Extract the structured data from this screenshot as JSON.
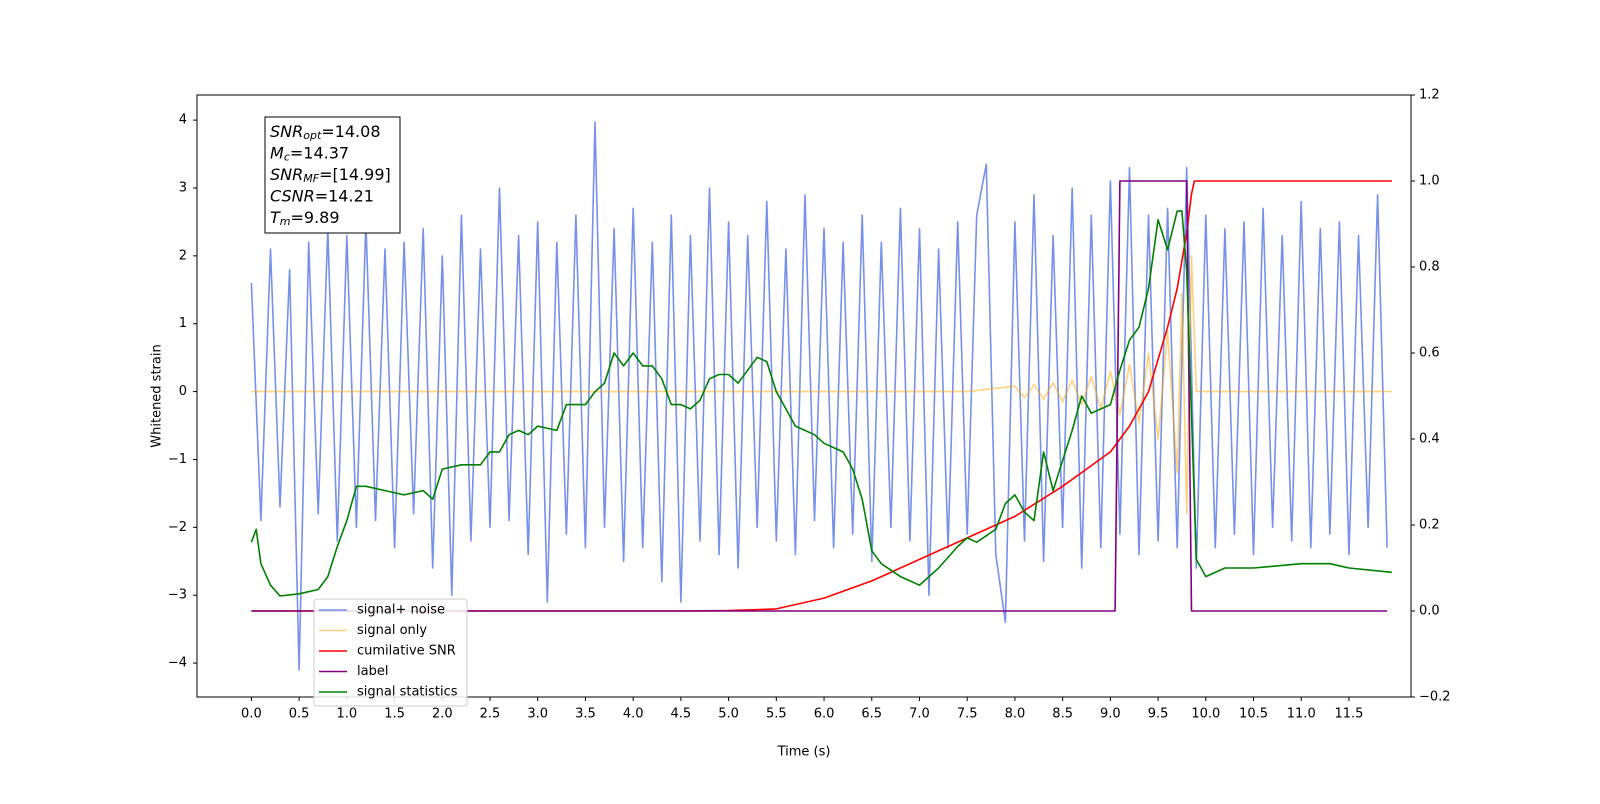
{
  "chart_data": {
    "type": "line",
    "x_label": "Time (s)",
    "y_label": "Whitened strain",
    "xlim": [
      -0.57,
      12.15
    ],
    "ylim": [
      -4.5,
      4.37
    ],
    "y2lim": [
      -0.2,
      1.2
    ],
    "xticks": [
      {
        "value": 0,
        "label": "0.0"
      },
      0.5,
      {
        "value": 1,
        "label": "1.0"
      },
      1.5,
      {
        "value": 2,
        "label": "2.0"
      },
      2.5,
      {
        "value": 3,
        "label": "3.0"
      },
      3.5,
      {
        "value": 4,
        "label": "4.0"
      },
      4.5,
      {
        "value": 5,
        "label": "5.0"
      },
      5.5,
      {
        "value": 6,
        "label": "6.0"
      },
      6.5,
      {
        "value": 7,
        "label": "7.0"
      },
      7.5,
      {
        "value": 8,
        "label": "8.0"
      },
      8.5,
      {
        "value": 9,
        "label": "9.0"
      },
      9.5,
      {
        "value": 10,
        "label": "10.0"
      },
      10.5,
      {
        "value": 11,
        "label": "11.0"
      },
      11.5
    ],
    "yticks": [
      {
        "value": -4,
        "label": "−4"
      },
      {
        "value": -3,
        "label": "−3"
      },
      {
        "value": -2,
        "label": "−2"
      },
      {
        "value": -1,
        "label": "−1"
      },
      0,
      1,
      2,
      3,
      4
    ],
    "y2ticks": [
      {
        "value": -0.2,
        "label": "−0.2"
      },
      {
        "value": 0,
        "label": "0.0"
      },
      0.2,
      0.4,
      0.6,
      0.8,
      {
        "value": 1,
        "label": "1.0"
      },
      1.2
    ],
    "annotation": [
      {
        "symbol": "SNR",
        "subscript": "opt",
        "text": "=14.08"
      },
      {
        "symbol": "M",
        "subscript": "c",
        "text": "=14.37"
      },
      {
        "symbol": "SNR",
        "subscript": "MF",
        "text": "=[14.99]"
      },
      {
        "symbol": "CSNR",
        "text": "=14.21"
      },
      {
        "symbol": "T",
        "subscript": "m",
        "text": "=9.89"
      }
    ],
    "series": [
      {
        "name": "signal+ noise",
        "color": "#7791e8",
        "x": [
          0,
          0.1,
          0.2,
          0.3,
          0.4,
          0.5,
          0.6,
          0.7,
          0.8,
          0.9,
          1,
          1.1,
          1.2,
          1.3,
          1.4,
          1.5,
          1.6,
          1.7,
          1.8,
          1.9,
          2,
          2.1,
          2.2,
          2.3,
          2.4,
          2.5,
          2.6,
          2.7,
          2.8,
          2.9,
          3,
          3.1,
          3.2,
          3.3,
          3.4,
          3.5,
          3.6,
          3.7,
          3.8,
          3.9,
          4,
          4.1,
          4.2,
          4.3,
          4.4,
          4.5,
          4.6,
          4.7,
          4.8,
          4.9,
          5,
          5.1,
          5.2,
          5.3,
          5.4,
          5.5,
          5.6,
          5.7,
          5.8,
          5.9,
          6,
          6.1,
          6.2,
          6.3,
          6.4,
          6.5,
          6.6,
          6.7,
          6.8,
          6.9,
          7,
          7.1,
          7.2,
          7.3,
          7.4,
          7.5,
          7.6,
          7.7,
          7.8,
          7.9,
          8,
          8.1,
          8.2,
          8.3,
          8.4,
          8.5,
          8.6,
          8.7,
          8.8,
          8.9,
          9,
          9.1,
          9.2,
          9.3,
          9.4,
          9.5,
          9.6,
          9.7,
          9.8,
          9.9,
          10,
          10.1,
          10.2,
          10.3,
          10.4,
          10.5,
          10.6,
          10.7,
          10.8,
          10.9,
          11,
          11.1,
          11.2,
          11.3,
          11.4,
          11.5,
          11.6,
          11.7,
          11.8,
          11.9
        ],
        "values": [
          1.6,
          -1.9,
          2.1,
          -1.7,
          1.8,
          -4.1,
          2.2,
          -1.8,
          2.4,
          -2.2,
          2.3,
          -2.0,
          2.5,
          -1.9,
          2.1,
          -2.3,
          2.2,
          -1.8,
          2.4,
          -2.6,
          2.0,
          -3.0,
          2.6,
          -2.2,
          2.1,
          -2.0,
          3.0,
          -1.9,
          2.3,
          -2.4,
          2.5,
          -3.1,
          2.2,
          -2.1,
          2.6,
          -2.3,
          3.97,
          -2.0,
          2.4,
          -2.5,
          2.7,
          -2.3,
          2.2,
          -2.8,
          2.6,
          -3.1,
          2.3,
          -2.2,
          3.0,
          -2.4,
          2.5,
          -2.6,
          2.3,
          -2.0,
          2.8,
          -2.2,
          2.1,
          -2.4,
          2.9,
          -1.9,
          2.4,
          -2.3,
          2.2,
          -2.1,
          2.6,
          -2.5,
          2.2,
          -2.0,
          2.7,
          -2.2,
          2.4,
          -3.0,
          2.1,
          -2.3,
          2.5,
          -2.1,
          2.6,
          3.35,
          -2.4,
          -3.4,
          2.5,
          -2.2,
          2.9,
          -2.5,
          2.3,
          -2.0,
          3.0,
          -2.6,
          2.6,
          -2.3,
          3.1,
          -2.1,
          3.3,
          -2.4,
          2.6,
          -2.2,
          2.7,
          -2.3,
          3.3,
          -2.6,
          2.6,
          -2.3,
          2.4,
          -2.1,
          2.5,
          -2.4,
          2.7,
          -2.0,
          2.3,
          -2.2,
          2.8,
          -2.3,
          2.4,
          -2.1,
          2.5,
          -2.4,
          2.3,
          -2.0,
          2.9,
          -2.3
        ]
      },
      {
        "name": "signal only",
        "color": "orange",
        "alpha": 0.5,
        "x": [
          0,
          7.5,
          8.0,
          8.1,
          8.2,
          8.3,
          8.4,
          8.5,
          8.6,
          8.7,
          8.8,
          8.9,
          9.0,
          9.1,
          9.2,
          9.3,
          9.4,
          9.5,
          9.6,
          9.7,
          9.75,
          9.8,
          9.85,
          9.9,
          11.95
        ],
        "values": [
          0,
          0,
          0.08,
          -0.09,
          0.1,
          -0.11,
          0.13,
          -0.15,
          0.17,
          -0.19,
          0.22,
          -0.25,
          0.3,
          -0.34,
          0.4,
          -0.46,
          0.56,
          -0.7,
          0.88,
          -1.2,
          1.45,
          -1.8,
          2.0,
          0,
          0
        ]
      },
      {
        "name": "cumilative SNR",
        "color": "#ff0000",
        "axis": "y2",
        "x": [
          0,
          4.5,
          5.0,
          5.5,
          6.0,
          6.5,
          7.0,
          7.5,
          8.0,
          8.5,
          9.0,
          9.2,
          9.4,
          9.6,
          9.7,
          9.8,
          9.85,
          9.88,
          11.95
        ],
        "values": [
          0,
          0,
          0.001,
          0.005,
          0.03,
          0.07,
          0.12,
          0.17,
          0.22,
          0.29,
          0.37,
          0.43,
          0.51,
          0.66,
          0.75,
          0.88,
          0.97,
          1.0,
          1.0
        ]
      },
      {
        "name": "label",
        "color": "#800080",
        "axis": "y2",
        "x": [
          0,
          9.05,
          9.1,
          9.8,
          9.85,
          11.9
        ],
        "values": [
          0,
          0,
          1,
          1,
          0,
          0
        ]
      },
      {
        "name": "signal statistics",
        "color": "#008000",
        "axis": "y2",
        "x": [
          0,
          0.05,
          0.1,
          0.2,
          0.3,
          0.5,
          0.7,
          0.8,
          0.9,
          1.0,
          1.1,
          1.2,
          1.4,
          1.6,
          1.8,
          1.9,
          2.0,
          2.2,
          2.4,
          2.5,
          2.6,
          2.7,
          2.8,
          2.9,
          3.0,
          3.2,
          3.3,
          3.5,
          3.6,
          3.7,
          3.8,
          3.9,
          4.0,
          4.1,
          4.2,
          4.3,
          4.4,
          4.5,
          4.6,
          4.7,
          4.8,
          4.9,
          5.0,
          5.1,
          5.2,
          5.3,
          5.4,
          5.5,
          5.6,
          5.7,
          5.9,
          6.0,
          6.2,
          6.3,
          6.4,
          6.5,
          6.6,
          6.8,
          7.0,
          7.2,
          7.4,
          7.5,
          7.6,
          7.8,
          7.9,
          8.0,
          8.1,
          8.2,
          8.3,
          8.4,
          8.5,
          8.6,
          8.7,
          8.8,
          9.0,
          9.1,
          9.2,
          9.3,
          9.4,
          9.5,
          9.6,
          9.7,
          9.75,
          9.8,
          9.9,
          10.0,
          10.2,
          10.5,
          11.0,
          11.3,
          11.5,
          11.95
        ],
        "values": [
          0.16,
          0.19,
          0.11,
          0.06,
          0.035,
          0.04,
          0.05,
          0.08,
          0.15,
          0.21,
          0.29,
          0.29,
          0.28,
          0.27,
          0.28,
          0.26,
          0.33,
          0.34,
          0.34,
          0.37,
          0.37,
          0.41,
          0.42,
          0.41,
          0.43,
          0.42,
          0.48,
          0.48,
          0.51,
          0.53,
          0.6,
          0.57,
          0.6,
          0.57,
          0.57,
          0.54,
          0.48,
          0.48,
          0.47,
          0.49,
          0.54,
          0.55,
          0.55,
          0.53,
          0.56,
          0.59,
          0.58,
          0.51,
          0.47,
          0.43,
          0.41,
          0.39,
          0.37,
          0.33,
          0.26,
          0.14,
          0.11,
          0.08,
          0.06,
          0.1,
          0.15,
          0.17,
          0.16,
          0.19,
          0.25,
          0.27,
          0.23,
          0.21,
          0.37,
          0.28,
          0.35,
          0.42,
          0.5,
          0.46,
          0.48,
          0.56,
          0.63,
          0.66,
          0.75,
          0.91,
          0.84,
          0.93,
          0.93,
          0.79,
          0.12,
          0.08,
          0.1,
          0.1,
          0.11,
          0.11,
          0.1,
          0.09
        ]
      }
    ]
  }
}
